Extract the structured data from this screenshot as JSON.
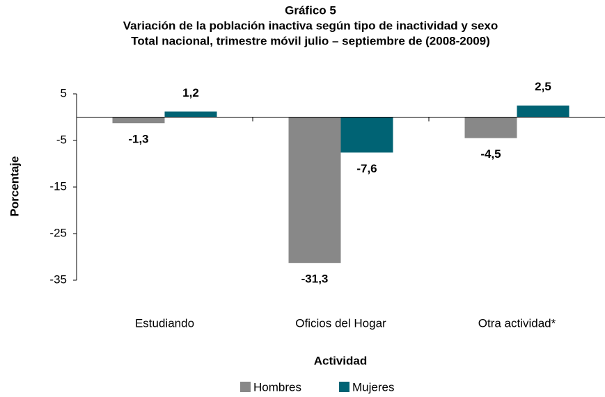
{
  "chart_data": {
    "type": "bar",
    "title": "Gráfico 5",
    "subtitle": [
      "Variación de la población inactiva según tipo de inactividad y sexo",
      "Total nacional, trimestre móvil julio – septiembre de (2008-2009)"
    ],
    "y_label": "Porcentaje",
    "x_label": "Actividad",
    "categories": [
      "Estudiando",
      "Oficios del Hogar",
      "Otra actividad*"
    ],
    "series": [
      {
        "name": "Hombres",
        "color": "#888888",
        "values": [
          -1.3,
          -31.3,
          -4.5
        ],
        "value_labels": [
          "-1,3",
          "-31,3",
          "-4,5"
        ]
      },
      {
        "name": "Mujeres",
        "color": "#006374",
        "values": [
          1.2,
          -7.6,
          2.5
        ],
        "value_labels": [
          "1,2",
          "-7,6",
          "2,5"
        ]
      }
    ],
    "ylim": [
      -35,
      5
    ],
    "yticks": [
      5,
      -5,
      -15,
      -25,
      -35
    ],
    "grid": false,
    "legend": "bottom"
  }
}
